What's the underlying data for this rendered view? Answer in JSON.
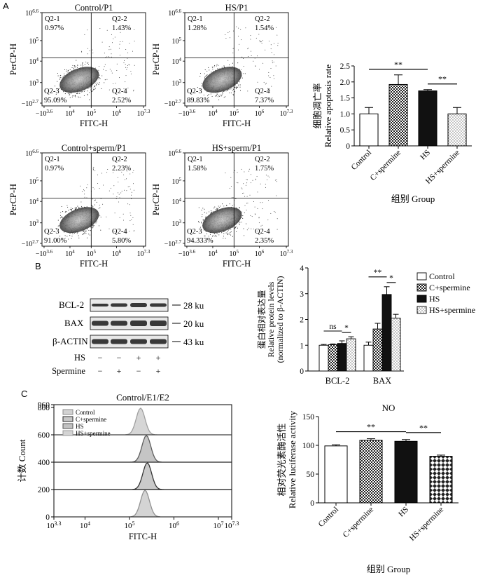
{
  "panels": {
    "a": "A",
    "b": "B",
    "c": "C"
  },
  "flow": {
    "y_axis_label": "PerCP-H",
    "x_axis_label": "FITC-H",
    "y_ticks": [
      {
        "base": "10",
        "exp": "6.6"
      },
      {
        "base": "10",
        "exp": "5"
      },
      {
        "base": "10",
        "exp": "4"
      },
      {
        "base": "10",
        "exp": "3"
      },
      {
        "base": "−10",
        "exp": "2.7"
      }
    ],
    "x_ticks": [
      {
        "base": "−10",
        "exp": "3.6"
      },
      {
        "base": "10",
        "exp": "4"
      },
      {
        "base": "10",
        "exp": "5"
      },
      {
        "base": "10",
        "exp": "6"
      },
      {
        "base": "10",
        "exp": "7.3"
      }
    ],
    "plots": [
      {
        "title": "Control/P1",
        "q1": "Q2-1",
        "q1v": "0.97%",
        "q2": "Q2-2",
        "q2v": "1.43%",
        "q3": "Q2-3",
        "q3v": "95.09%",
        "q4": "Q2-4",
        "q4v": "2.52%"
      },
      {
        "title": "HS/P1",
        "q1": "Q2-1",
        "q1v": "1.28%",
        "q2": "Q2-2",
        "q2v": "1.54%",
        "q3": "Q2-3",
        "q3v": "89.83%",
        "q4": "Q2-4",
        "q4v": "7.37%"
      },
      {
        "title": "Control+sperm/P1",
        "q1": "Q2-1",
        "q1v": "0.97%",
        "q2": "Q2-2",
        "q2v": "2.23%",
        "q3": "Q2-3",
        "q3v": "91.00%",
        "q4": "Q2-4",
        "q4v": "5.80%"
      },
      {
        "title": "HS+sperm/P1",
        "q1": "Q2-1",
        "q1v": "1.58%",
        "q2": "Q2-2",
        "q2v": "1.75%",
        "q3": "Q2-3",
        "q3v": "94.333%",
        "q4": "Q2-4",
        "q4v": "2.35%"
      }
    ]
  },
  "blot": {
    "rows": [
      {
        "label": "BCL-2",
        "size": "28 ku"
      },
      {
        "label": "BAX",
        "size": "20 ku"
      },
      {
        "label": "β-ACTIN",
        "size": "43 ku"
      }
    ],
    "treatments": [
      {
        "label": "HS",
        "values": [
          "−",
          "−",
          "+",
          "+"
        ]
      },
      {
        "label": "Spermine",
        "values": [
          "−",
          "+",
          "−",
          "+"
        ]
      }
    ]
  },
  "histogram": {
    "title": "Control/E1/E2",
    "ylabel": "计数 Count",
    "xlabel": "FITC-H",
    "y_ticks": [
      "960",
      "800",
      "600",
      "400",
      "200",
      "0"
    ],
    "x_ticks": [
      {
        "base": "10",
        "exp": "3.3"
      },
      {
        "base": "10",
        "exp": "4"
      },
      {
        "base": "10",
        "exp": "5"
      },
      {
        "base": "10",
        "exp": "6"
      },
      {
        "base": "10",
        "exp": "7"
      },
      {
        "base": "10",
        "exp": "7.3"
      }
    ],
    "legend": [
      "Control",
      "C+spermine",
      "HS",
      "HS+spermine"
    ],
    "fill_colors": [
      "#d2d2d2",
      "#c8c8c8",
      "#c2c2c2",
      "#d4d4d4"
    ],
    "edge_colors": [
      "#8c8c8c",
      "#2a2a2a",
      "#555555",
      "#9a9a9a"
    ],
    "peak_decades": [
      5.35,
      5.4,
      5.38,
      5.25
    ]
  },
  "chart_data": [
    {
      "type": "bar",
      "id": "apoptosis",
      "title": "",
      "ylabel_cn": "细胞凋亡率",
      "ylabel": "Relative apoptosis rate",
      "xlabel": "组别 Group",
      "categories": [
        "Control",
        "C+spermine",
        "HS",
        "HS+spermine"
      ],
      "values": [
        1.0,
        1.92,
        1.72,
        1.0
      ],
      "errors": [
        0.2,
        0.3,
        0.04,
        0.2
      ],
      "ylim": [
        0,
        2.5
      ],
      "yticks": [
        "0",
        "0.5",
        "1.0",
        "1.5",
        "2.0",
        "2.5"
      ],
      "fills": [
        "white",
        "checker",
        "black",
        "dots"
      ],
      "significance": [
        {
          "from": 0,
          "to": 2,
          "label": "**"
        },
        {
          "from": 2,
          "to": 3,
          "label": "**"
        }
      ]
    },
    {
      "type": "bar",
      "id": "protein",
      "ylabel_cn": "蛋白相对表达量",
      "ylabel": "Relative protein levels",
      "ylabel2": "(normalized to β-ACTIN)",
      "categories": [
        "BCL-2",
        "BAX"
      ],
      "series": [
        {
          "name": "Control",
          "fill": "white",
          "values": [
            1.0,
            1.0
          ],
          "errors": [
            0.03,
            0.12
          ]
        },
        {
          "name": "C+spermine",
          "fill": "checker",
          "values": [
            1.02,
            1.63
          ],
          "errors": [
            0.03,
            0.22
          ]
        },
        {
          "name": "HS",
          "fill": "black",
          "values": [
            1.07,
            2.97
          ],
          "errors": [
            0.1,
            0.3
          ]
        },
        {
          "name": "HS+spermine",
          "fill": "dots",
          "values": [
            1.25,
            2.05
          ],
          "errors": [
            0.08,
            0.15
          ]
        }
      ],
      "ylim": [
        0,
        4
      ],
      "yticks": [
        "0",
        "1",
        "2",
        "3",
        "4"
      ],
      "significance": [
        {
          "group": 0,
          "from": 0,
          "to": 2,
          "label": "ns"
        },
        {
          "group": 0,
          "from": 2,
          "to": 3,
          "label": "*"
        },
        {
          "group": 1,
          "from": 0,
          "to": 2,
          "label": "**"
        },
        {
          "group": 1,
          "from": 2,
          "to": 3,
          "label": "*"
        }
      ]
    },
    {
      "type": "bar",
      "id": "luciferase",
      "title": "NO",
      "ylabel_cn": "相对荧光素酶活性",
      "ylabel": "Relative luciferase activity",
      "xlabel": "组别 Group",
      "categories": [
        "Control",
        "C+spermine",
        "HS",
        "HS+spermine"
      ],
      "values": [
        99,
        109,
        107,
        81
      ],
      "errors": [
        2,
        2.5,
        3,
        2
      ],
      "ylim": [
        0,
        150
      ],
      "yticks": [
        "0",
        "50",
        "100",
        "150"
      ],
      "fills": [
        "white",
        "checker",
        "black",
        "diamond"
      ],
      "significance": [
        {
          "from": 0,
          "to": 2,
          "label": "**"
        },
        {
          "from": 2,
          "to": 3,
          "label": "**"
        }
      ]
    }
  ]
}
